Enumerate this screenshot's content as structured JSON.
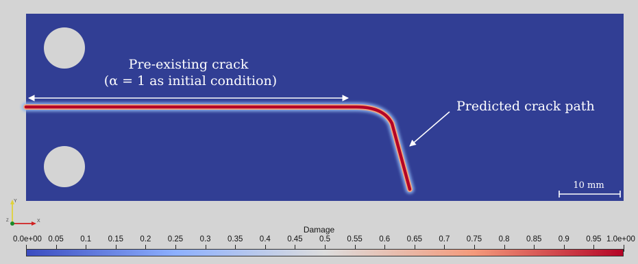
{
  "annotations": {
    "crack_label_line1": "Pre-existing crack",
    "crack_label_line2": "(α = 1 as initial condition)",
    "predicted_label": "Predicted crack path",
    "scale_label": "10 mm"
  },
  "axes_triad": {
    "y_label": "Y",
    "x_label": "X",
    "z_label": "Z"
  },
  "colorbar": {
    "title": "Damage",
    "ticks": [
      "0.0e+00",
      "0.05",
      "0.1",
      "0.15",
      "0.2",
      "0.25",
      "0.3",
      "0.35",
      "0.4",
      "0.45",
      "0.5",
      "0.55",
      "0.6",
      "0.65",
      "0.7",
      "0.75",
      "0.8",
      "0.85",
      "0.9",
      "0.95",
      "1.0e+00"
    ],
    "colors": {
      "low": "#3b4cc0",
      "mid": "#dddddd",
      "high": "#b40426"
    }
  },
  "colors": {
    "specimen": "#313e94",
    "background": "#d4d4d4",
    "crack_core": "#b40426",
    "annotation": "#ffffff"
  }
}
